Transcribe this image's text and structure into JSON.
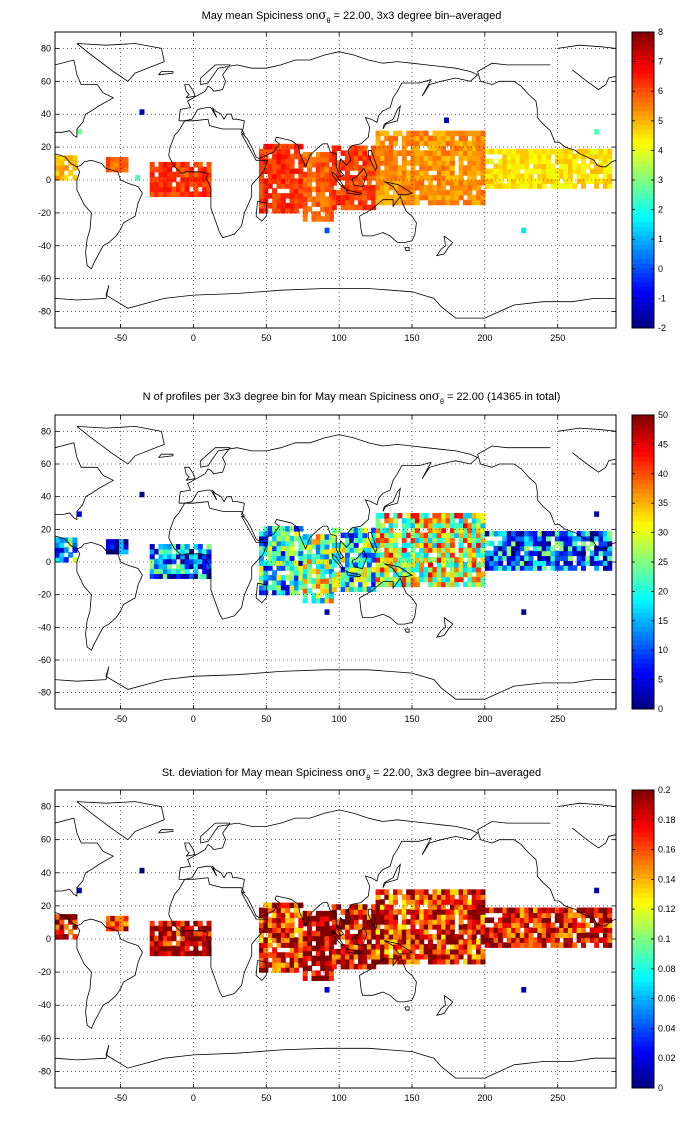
{
  "chart_data": [
    {
      "type": "heatmap",
      "title_main": "May mean Spiciness on",
      "title_sigma": "σ",
      "title_sub": "θ",
      "title_rest": " = 22.00, 3x3 degree bin–averaged",
      "xlim": [
        -95,
        290
      ],
      "ylim": [
        -90,
        90
      ],
      "xticks": [
        -50,
        0,
        50,
        100,
        150,
        200,
        250
      ],
      "yticks": [
        80,
        60,
        40,
        20,
        0,
        -20,
        -40,
        -60,
        -80
      ],
      "grid": true,
      "colormap": "jet",
      "colorbar": {
        "min": -2,
        "max": 8,
        "ticks": [
          8,
          7,
          6,
          5,
          4,
          3,
          2,
          1,
          0,
          -1,
          -2
        ]
      },
      "patches": [
        {
          "lon": [
            -95,
            -80
          ],
          "lat": [
            0,
            15
          ],
          "value": 5.0
        },
        {
          "lon": [
            -60,
            -45
          ],
          "lat": [
            5,
            12
          ],
          "value": 5.8
        },
        {
          "lon": [
            -30,
            10
          ],
          "lat": [
            -10,
            10
          ],
          "value": 6.2
        },
        {
          "lon": [
            45,
            75
          ],
          "lat": [
            -20,
            20
          ],
          "value": 6.3
        },
        {
          "lon": [
            75,
            95
          ],
          "lat": [
            -25,
            15
          ],
          "value": 5.8
        },
        {
          "lon": [
            95,
            125
          ],
          "lat": [
            -18,
            20
          ],
          "value": 6.1
        },
        {
          "lon": [
            125,
            200
          ],
          "lat": [
            -15,
            28
          ],
          "value": 5.3
        },
        {
          "lon": [
            200,
            285
          ],
          "lat": [
            -5,
            18
          ],
          "value": 4.5
        }
      ],
      "points": [
        {
          "lon": -80,
          "lat": 28,
          "value": 2.8
        },
        {
          "lon": -37,
          "lat": 40,
          "value": -1.5
        },
        {
          "lon": 172,
          "lat": 35,
          "value": -1.5
        },
        {
          "lon": 90,
          "lat": -32,
          "value": 0.0
        },
        {
          "lon": 225,
          "lat": -32,
          "value": 1.5
        },
        {
          "lon": -40,
          "lat": 0,
          "value": 2.5
        },
        {
          "lon": 275,
          "lat": 28,
          "value": 2.5
        }
      ]
    },
    {
      "type": "heatmap",
      "title_main": "N of profiles per 3x3 degree bin for May mean Spiciness on",
      "title_sigma": "σ",
      "title_sub": "θ",
      "title_rest": " = 22.00 (14365 in total)",
      "xlim": [
        -95,
        290
      ],
      "ylim": [
        -90,
        90
      ],
      "xticks": [
        -50,
        0,
        50,
        100,
        150,
        200,
        250
      ],
      "yticks": [
        80,
        60,
        40,
        20,
        0,
        -20,
        -40,
        -60,
        -80
      ],
      "grid": true,
      "colormap": "jet",
      "colorbar": {
        "min": 0,
        "max": 50,
        "ticks": [
          50,
          45,
          40,
          35,
          30,
          25,
          20,
          15,
          10,
          5,
          0
        ]
      },
      "patches": [
        {
          "lon": [
            -95,
            -80
          ],
          "lat": [
            0,
            15
          ],
          "value": 15
        },
        {
          "lon": [
            -60,
            -45
          ],
          "lat": [
            5,
            12
          ],
          "value": 5
        },
        {
          "lon": [
            -30,
            10
          ],
          "lat": [
            -10,
            10
          ],
          "value": 12
        },
        {
          "lon": [
            45,
            75
          ],
          "lat": [
            -20,
            20
          ],
          "value": 18
        },
        {
          "lon": [
            75,
            95
          ],
          "lat": [
            -25,
            15
          ],
          "value": 25
        },
        {
          "lon": [
            95,
            125
          ],
          "lat": [
            -18,
            20
          ],
          "value": 20
        },
        {
          "lon": [
            125,
            200
          ],
          "lat": [
            -15,
            28
          ],
          "value": 30
        },
        {
          "lon": [
            200,
            285
          ],
          "lat": [
            -5,
            18
          ],
          "value": 12
        }
      ],
      "points": [
        {
          "lon": -80,
          "lat": 28,
          "value": 5
        },
        {
          "lon": -37,
          "lat": 40,
          "value": 1
        },
        {
          "lon": 90,
          "lat": -32,
          "value": 3
        },
        {
          "lon": 225,
          "lat": -32,
          "value": 1
        },
        {
          "lon": 275,
          "lat": 28,
          "value": 2
        }
      ]
    },
    {
      "type": "heatmap",
      "title_main": "St. deviation for May mean Spiciness on",
      "title_sigma": "σ",
      "title_sub": "θ",
      "title_rest": " = 22.00, 3x3 degree bin–averaged",
      "xlim": [
        -95,
        290
      ],
      "ylim": [
        -90,
        90
      ],
      "xticks": [
        -50,
        0,
        50,
        100,
        150,
        200,
        250
      ],
      "yticks": [
        80,
        60,
        40,
        20,
        0,
        -20,
        -40,
        -60,
        -80
      ],
      "grid": true,
      "colormap": "jet",
      "colorbar": {
        "min": 0,
        "max": 0.2,
        "ticks": [
          0.2,
          0.18,
          0.16,
          0.14,
          0.12,
          0.1,
          0.08,
          0.06,
          0.04,
          0.02,
          0
        ]
      },
      "patches": [
        {
          "lon": [
            -95,
            -80
          ],
          "lat": [
            0,
            15
          ],
          "value": 0.19
        },
        {
          "lon": [
            -60,
            -45
          ],
          "lat": [
            5,
            12
          ],
          "value": 0.18
        },
        {
          "lon": [
            -30,
            10
          ],
          "lat": [
            -10,
            10
          ],
          "value": 0.19
        },
        {
          "lon": [
            45,
            75
          ],
          "lat": [
            -20,
            20
          ],
          "value": 0.17
        },
        {
          "lon": [
            75,
            95
          ],
          "lat": [
            -25,
            15
          ],
          "value": 0.2
        },
        {
          "lon": [
            95,
            125
          ],
          "lat": [
            -18,
            20
          ],
          "value": 0.18
        },
        {
          "lon": [
            125,
            200
          ],
          "lat": [
            -15,
            28
          ],
          "value": 0.17
        },
        {
          "lon": [
            200,
            285
          ],
          "lat": [
            -5,
            18
          ],
          "value": 0.18
        }
      ],
      "points": [
        {
          "lon": -80,
          "lat": 28,
          "value": 0.01
        },
        {
          "lon": -37,
          "lat": 40,
          "value": 0.0
        },
        {
          "lon": 90,
          "lat": -32,
          "value": 0.02
        },
        {
          "lon": 225,
          "lat": -32,
          "value": 0.01
        },
        {
          "lon": 275,
          "lat": 28,
          "value": 0.01
        }
      ]
    }
  ]
}
